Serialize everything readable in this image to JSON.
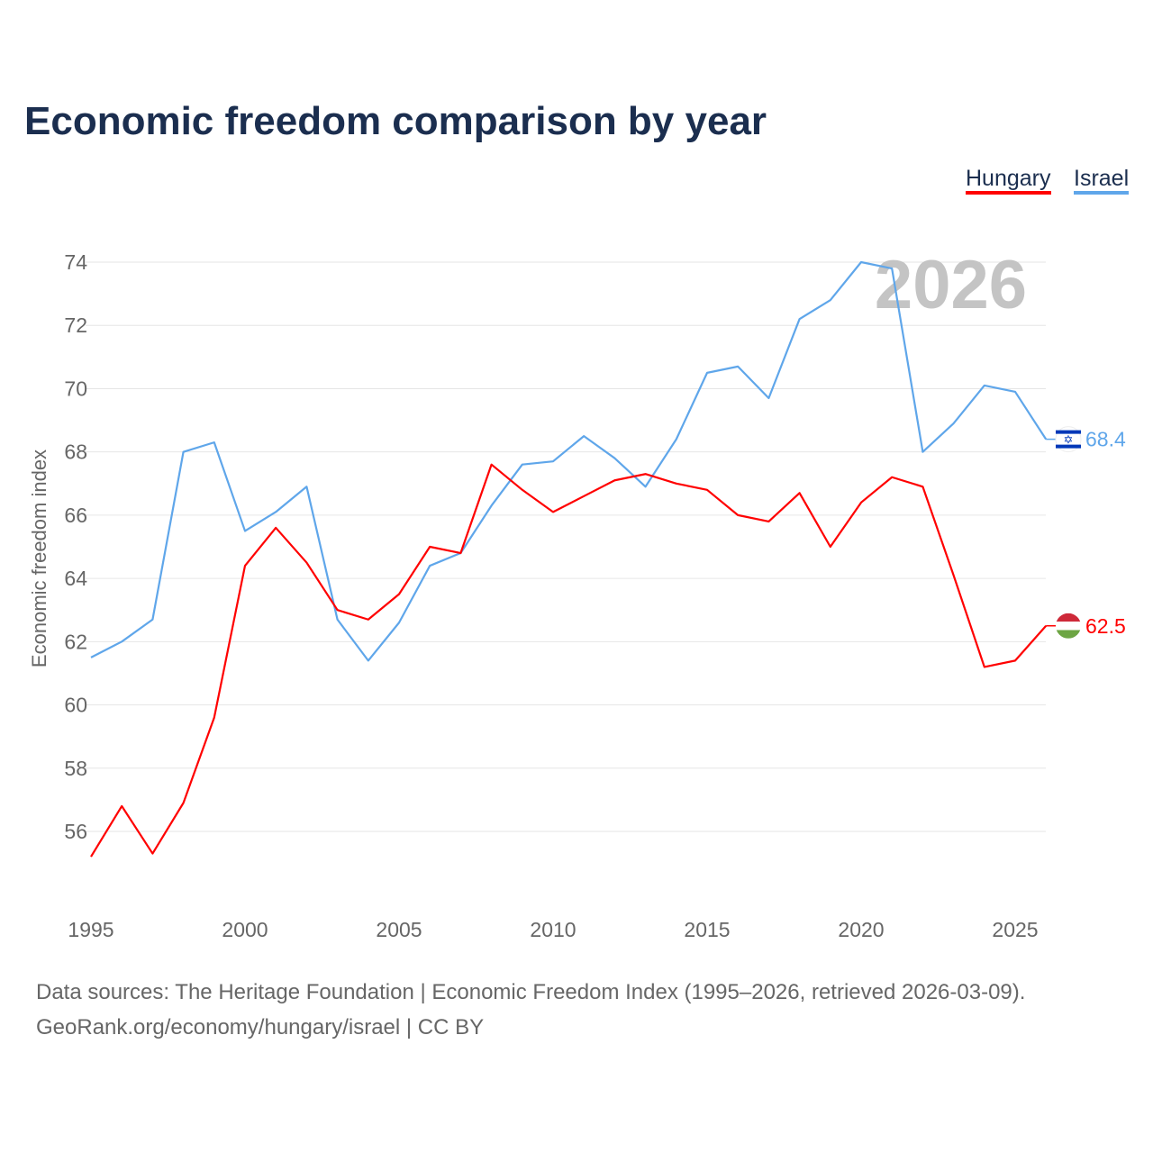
{
  "chart_data": {
    "type": "line",
    "title": "Economic freedom comparison by year",
    "ylabel": "Economic freedom index",
    "xlabel": "",
    "watermark_year": "2026",
    "ylim": [
      53.5,
      74
    ],
    "xlim": [
      1995,
      2026
    ],
    "yticks": [
      56,
      58,
      60,
      62,
      64,
      66,
      68,
      70,
      72,
      74
    ],
    "xticks": [
      1995,
      2000,
      2005,
      2010,
      2015,
      2020,
      2025
    ],
    "x": [
      1995,
      1996,
      1997,
      1998,
      1999,
      2000,
      2001,
      2002,
      2003,
      2004,
      2005,
      2006,
      2007,
      2008,
      2009,
      2010,
      2011,
      2012,
      2013,
      2014,
      2015,
      2016,
      2017,
      2018,
      2019,
      2020,
      2021,
      2022,
      2023,
      2024,
      2025,
      2026
    ],
    "series": [
      {
        "name": "Hungary",
        "color": "#ff0000",
        "end_label": "62.5",
        "values": [
          55.2,
          56.8,
          55.3,
          56.9,
          59.6,
          64.4,
          65.6,
          64.5,
          63.0,
          62.7,
          63.5,
          65.0,
          64.8,
          67.6,
          66.8,
          66.1,
          66.6,
          67.1,
          67.3,
          67.0,
          66.8,
          66.0,
          65.8,
          66.7,
          65.0,
          66.4,
          67.2,
          66.9,
          64.1,
          61.2,
          61.4,
          62.5
        ]
      },
      {
        "name": "Israel",
        "color": "#5fa6ea",
        "end_label": "68.4",
        "values": [
          61.5,
          62.0,
          62.7,
          68.0,
          68.3,
          65.5,
          66.1,
          66.9,
          62.7,
          61.4,
          62.6,
          64.4,
          64.8,
          66.3,
          67.6,
          67.7,
          68.5,
          67.8,
          66.9,
          68.4,
          70.5,
          70.7,
          69.7,
          72.2,
          72.8,
          74.0,
          73.8,
          68.0,
          68.9,
          70.1,
          69.9,
          68.4
        ]
      }
    ],
    "legend": "top-right",
    "grid": true
  },
  "footer": {
    "line1": "Data sources: The Heritage Foundation | Economic Freedom Index (1995–2026, retrieved 2026-03-09).",
    "line2": "GeoRank.org/economy/hungary/israel | CC BY"
  }
}
